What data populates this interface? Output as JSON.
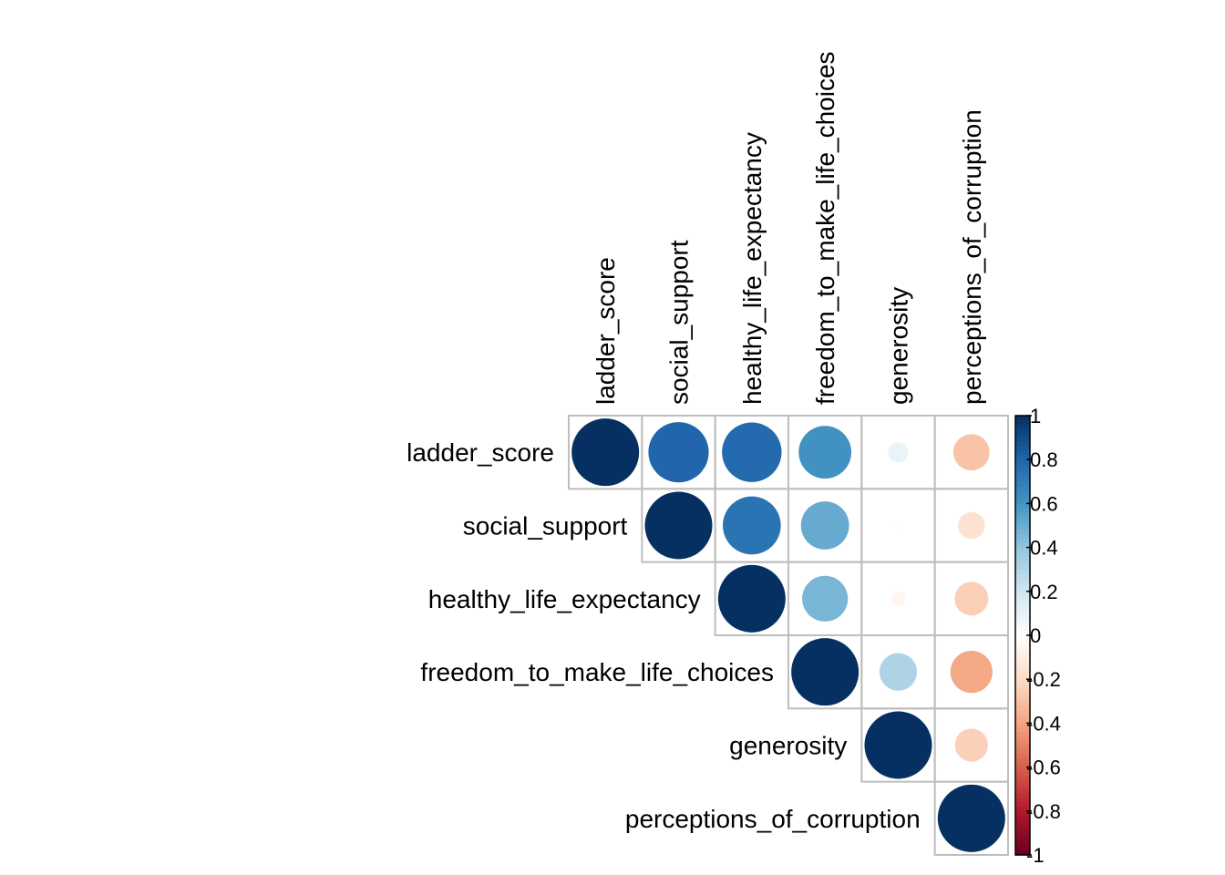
{
  "chart_data": {
    "type": "heatmap",
    "subtype": "correlation-matrix-upper-circle",
    "variables": [
      "ladder_score",
      "social_support",
      "healthy_life_expectancy",
      "freedom_to_make_life_choices",
      "generosity",
      "perceptions_of_corruption"
    ],
    "matrix": [
      [
        1,
        0.8,
        0.78,
        0.61,
        0.09,
        -0.29
      ],
      [
        0.8,
        1,
        0.74,
        0.51,
        0.01,
        -0.16
      ],
      [
        0.78,
        0.74,
        1,
        0.46,
        -0.05,
        -0.25
      ],
      [
        0.61,
        0.51,
        0.46,
        1,
        0.31,
        -0.39
      ],
      [
        0.09,
        0.01,
        -0.05,
        0.31,
        1,
        -0.24
      ],
      [
        -0.29,
        -0.16,
        -0.25,
        -0.39,
        -0.24,
        1
      ]
    ],
    "colorbar": {
      "range": [
        -1,
        1
      ],
      "tick_labels": [
        "1",
        "0.8",
        "0.6",
        "0.4",
        "0.2",
        "0",
        "-0.2",
        "-0.4",
        "-0.6",
        "-0.8",
        "-1"
      ],
      "colors": [
        "#67001F",
        "#B2182B",
        "#D6604D",
        "#F4A582",
        "#FDDBC7",
        "#FFFFFF",
        "#D1E5F0",
        "#92C5DE",
        "#4393C3",
        "#2166AC",
        "#053061"
      ]
    }
  }
}
